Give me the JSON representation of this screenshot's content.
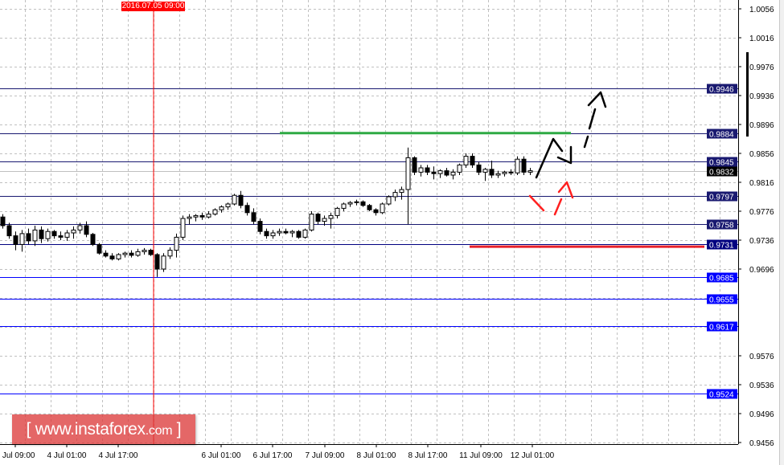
{
  "chart_data": {
    "type": "candlestick",
    "title": "",
    "xlabel": "",
    "ylabel": "",
    "ylim": [
      0.9456,
      1.0056
    ],
    "grid": true,
    "y_ticks": [
      "1.0056",
      "1.0016",
      "0.9976",
      "0.9936",
      "0.9896",
      "0.9856",
      "0.9816",
      "0.9776",
      "0.9736",
      "0.9696",
      "0.9576",
      "0.9536",
      "0.9496",
      "0.9456"
    ],
    "x_ticks": [
      "1 Jul 09:00",
      "4 Jul 01:00",
      "4 Jul 17:00",
      "6 Jul 01:00",
      "6 Jul 17:00",
      "7 Jul 09:00",
      "8 Jul 01:00",
      "8 Jul 17:00",
      "11 Jul 09:00",
      "12 Jul 01:00"
    ],
    "candles_ohlc": [
      [
        0.9768,
        0.9772,
        0.9752,
        0.9756
      ],
      [
        0.9756,
        0.976,
        0.9738,
        0.9742
      ],
      [
        0.9742,
        0.9748,
        0.9722,
        0.973
      ],
      [
        0.973,
        0.975,
        0.972,
        0.9745
      ],
      [
        0.9745,
        0.9752,
        0.973,
        0.9735
      ],
      [
        0.9735,
        0.9756,
        0.9728,
        0.975
      ],
      [
        0.975,
        0.9755,
        0.9732,
        0.9738
      ],
      [
        0.9738,
        0.9752,
        0.9734,
        0.9748
      ],
      [
        0.9748,
        0.975,
        0.9738,
        0.9742
      ],
      [
        0.9742,
        0.9748,
        0.9736,
        0.974
      ],
      [
        0.974,
        0.975,
        0.9735,
        0.9746
      ],
      [
        0.9746,
        0.9755,
        0.9738,
        0.975
      ],
      [
        0.975,
        0.976,
        0.9745,
        0.9756
      ],
      [
        0.9756,
        0.9762,
        0.974,
        0.9744
      ],
      [
        0.9744,
        0.9746,
        0.9728,
        0.973
      ],
      [
        0.973,
        0.9732,
        0.9716,
        0.9718
      ],
      [
        0.9718,
        0.9722,
        0.9712,
        0.9714
      ],
      [
        0.9714,
        0.9718,
        0.9708,
        0.971
      ],
      [
        0.971,
        0.9718,
        0.9708,
        0.9716
      ],
      [
        0.9716,
        0.972,
        0.9712,
        0.9718
      ],
      [
        0.9718,
        0.9722,
        0.9712,
        0.9715
      ],
      [
        0.9715,
        0.9724,
        0.9713,
        0.972
      ],
      [
        0.972,
        0.9725,
        0.9716,
        0.9722
      ],
      [
        0.9722,
        0.9724,
        0.9714,
        0.9716
      ],
      [
        0.9716,
        0.9718,
        0.9685,
        0.9696
      ],
      [
        0.9696,
        0.9718,
        0.9692,
        0.9714
      ],
      [
        0.9714,
        0.9726,
        0.971,
        0.9722
      ],
      [
        0.9722,
        0.9745,
        0.9712,
        0.974
      ],
      [
        0.974,
        0.977,
        0.9736,
        0.9766
      ],
      [
        0.9766,
        0.9772,
        0.9758,
        0.9768
      ],
      [
        0.9768,
        0.9772,
        0.9762,
        0.977
      ],
      [
        0.977,
        0.9774,
        0.9764,
        0.9768
      ],
      [
        0.9768,
        0.9776,
        0.9766,
        0.9772
      ],
      [
        0.9772,
        0.978,
        0.977,
        0.9778
      ],
      [
        0.9778,
        0.9784,
        0.9774,
        0.9782
      ],
      [
        0.9782,
        0.9788,
        0.9778,
        0.9786
      ],
      [
        0.9786,
        0.98,
        0.9784,
        0.9798
      ],
      [
        0.9798,
        0.9804,
        0.978,
        0.9784
      ],
      [
        0.9784,
        0.9788,
        0.977,
        0.9774
      ],
      [
        0.9774,
        0.978,
        0.9758,
        0.9762
      ],
      [
        0.9762,
        0.9766,
        0.9744,
        0.9748
      ],
      [
        0.9748,
        0.9752,
        0.9738,
        0.9742
      ],
      [
        0.9742,
        0.975,
        0.9738,
        0.9746
      ],
      [
        0.9746,
        0.9752,
        0.9742,
        0.9748
      ],
      [
        0.9748,
        0.9752,
        0.9744,
        0.9746
      ],
      [
        0.9746,
        0.975,
        0.974,
        0.9748
      ],
      [
        0.9748,
        0.975,
        0.9738,
        0.974
      ],
      [
        0.974,
        0.9752,
        0.9738,
        0.975
      ],
      [
        0.975,
        0.9776,
        0.9748,
        0.9772
      ],
      [
        0.9772,
        0.9774,
        0.9758,
        0.9762
      ],
      [
        0.9762,
        0.977,
        0.9756,
        0.9766
      ],
      [
        0.9766,
        0.9774,
        0.9752,
        0.977
      ],
      [
        0.977,
        0.9782,
        0.9766,
        0.978
      ],
      [
        0.978,
        0.9788,
        0.9776,
        0.9786
      ],
      [
        0.9786,
        0.979,
        0.9782,
        0.9788
      ],
      [
        0.9788,
        0.9792,
        0.9784,
        0.9789
      ],
      [
        0.9789,
        0.9791,
        0.9782,
        0.9784
      ],
      [
        0.9784,
        0.9786,
        0.9776,
        0.9778
      ],
      [
        0.9778,
        0.978,
        0.977,
        0.9774
      ],
      [
        0.9774,
        0.9788,
        0.9772,
        0.9786
      ],
      [
        0.9786,
        0.9798,
        0.9784,
        0.9796
      ],
      [
        0.9796,
        0.9806,
        0.979,
        0.9802
      ],
      [
        0.9802,
        0.981,
        0.9792,
        0.9806
      ],
      [
        0.9806,
        0.9864,
        0.9758,
        0.985
      ],
      [
        0.985,
        0.9852,
        0.9826,
        0.983
      ],
      [
        0.983,
        0.984,
        0.9824,
        0.9836
      ],
      [
        0.9836,
        0.984,
        0.9826,
        0.983
      ],
      [
        0.983,
        0.9838,
        0.982,
        0.9828
      ],
      [
        0.9828,
        0.9834,
        0.9822,
        0.9832
      ],
      [
        0.9832,
        0.9836,
        0.9824,
        0.9826
      ],
      [
        0.9826,
        0.9834,
        0.982,
        0.983
      ],
      [
        0.983,
        0.9842,
        0.9826,
        0.984
      ],
      [
        0.984,
        0.9856,
        0.9836,
        0.9852
      ],
      [
        0.9852,
        0.9856,
        0.9836,
        0.984
      ],
      [
        0.984,
        0.9844,
        0.9826,
        0.983
      ],
      [
        0.983,
        0.9836,
        0.9818,
        0.9834
      ],
      [
        0.9834,
        0.9846,
        0.9822,
        0.9826
      ],
      [
        0.9826,
        0.9832,
        0.9822,
        0.9828
      ],
      [
        0.9828,
        0.9832,
        0.9824,
        0.983
      ],
      [
        0.983,
        0.9834,
        0.9826,
        0.9829
      ],
      [
        0.9829,
        0.9852,
        0.9826,
        0.9848
      ],
      [
        0.9848,
        0.9852,
        0.9826,
        0.983
      ],
      [
        0.983,
        0.9836,
        0.9826,
        0.9832
      ]
    ],
    "levels": [
      {
        "value": "0.9946",
        "color": "#191970"
      },
      {
        "value": "0.9884",
        "color": "#191970"
      },
      {
        "value": "0.9845",
        "color": "#191970"
      },
      {
        "value": "0.9832",
        "color": "#000000",
        "line_color": "#c0c0c0",
        "current_price": true
      },
      {
        "value": "0.9797",
        "color": "#191970"
      },
      {
        "value": "0.9758",
        "color": "#191970"
      },
      {
        "value": "0.9731",
        "color": "#000080"
      },
      {
        "value": "0.9685",
        "color": "#0000ff"
      },
      {
        "value": "0.9655",
        "color": "#0000ff"
      },
      {
        "value": "0.9617",
        "color": "#0000ff"
      },
      {
        "value": "0.9524",
        "color": "#0000ff"
      }
    ],
    "vertical_marker": {
      "label": "2016.07.05 09:00",
      "color": "#ff0000"
    },
    "drawn_lines": [
      {
        "type": "horizontal",
        "price": 0.9884,
        "color": "#2eaa44"
      },
      {
        "type": "horizontal",
        "price": 0.9727,
        "color": "#e8202a"
      }
    ],
    "bull_color": "#ffffff",
    "bear_color": "#000000"
  },
  "watermark": {
    "text": "[ www.instaforex.com ]"
  }
}
